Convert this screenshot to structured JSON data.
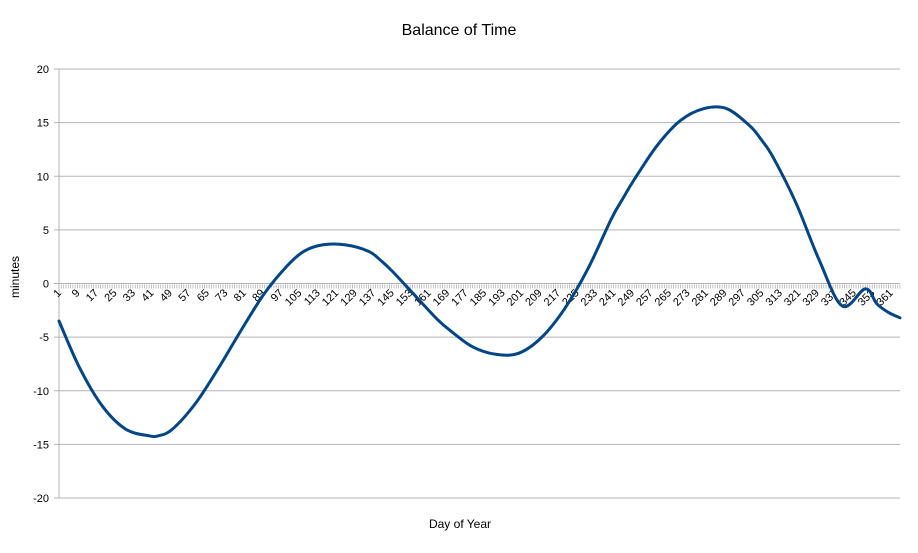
{
  "chart_data": {
    "type": "line",
    "title": "Balance of Time",
    "xlabel": "Day of Year",
    "ylabel": "minutes",
    "xlim": [
      1,
      365
    ],
    "ylim": [
      -20,
      20
    ],
    "y_ticks": [
      20,
      15,
      10,
      5,
      0,
      -5,
      -10,
      -15,
      -20
    ],
    "x_tick_labels": [
      "1",
      "9",
      "17",
      "25",
      "33",
      "41",
      "49",
      "57",
      "65",
      "73",
      "81",
      "89",
      "97",
      "105",
      "113",
      "121",
      "129",
      "137",
      "145",
      "153",
      "161",
      "169",
      "177",
      "185",
      "193",
      "201",
      "209",
      "217",
      "225",
      "233",
      "241",
      "249",
      "257",
      "265",
      "273",
      "281",
      "289",
      "297",
      "305",
      "313",
      "321",
      "329",
      "337",
      "345",
      "353",
      "361"
    ],
    "grid": true,
    "legend": "none",
    "series": [
      {
        "color": "#004586",
        "x": [
          1,
          10,
          20,
          30,
          40,
          44,
          50,
          60,
          70,
          80,
          90,
          100,
          107,
          115,
          125,
          135,
          140,
          145,
          155,
          165,
          171,
          180,
          190,
          200,
          210,
          220,
          230,
          240,
          245,
          250,
          260,
          270,
          280,
          290,
          300,
          305,
          310,
          320,
          330,
          340,
          350,
          355,
          360,
          365
        ],
        "y": [
          -3.5,
          -7.9,
          -11.5,
          -13.6,
          -14.2,
          -14.2,
          -13.6,
          -11.2,
          -7.9,
          -4.3,
          -0.9,
          1.7,
          3.0,
          3.6,
          3.6,
          3.0,
          2.2,
          1.2,
          -1.1,
          -3.4,
          -4.5,
          -5.9,
          -6.6,
          -6.5,
          -5.0,
          -2.3,
          1.4,
          6.0,
          7.9,
          9.7,
          12.9,
          15.2,
          16.3,
          16.3,
          14.7,
          13.4,
          11.8,
          7.5,
          2.2,
          -2.1,
          -0.5,
          -1.9,
          -2.7,
          -3.2
        ]
      }
    ]
  }
}
